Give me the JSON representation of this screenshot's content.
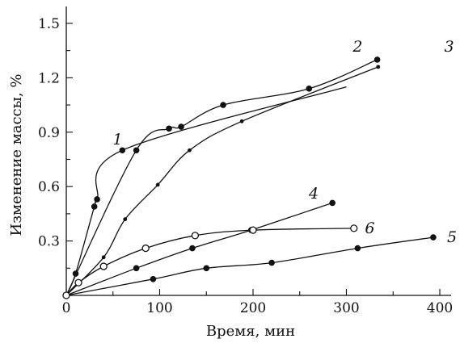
{
  "chart_data": {
    "type": "line",
    "xlabel": "Время, мин",
    "ylabel": "Изменение массы, %",
    "xlim": [
      0,
      420
    ],
    "ylim": [
      0,
      1.5
    ],
    "xticks": [
      0,
      100,
      200,
      300,
      400
    ],
    "xtick_labels": [
      "0",
      "100",
      "200",
      "300",
      "400"
    ],
    "yticks": [
      0.3,
      0.6,
      0.9,
      1.2,
      1.5
    ],
    "ytick_labels": [
      "0.3",
      "0.6",
      "0.9",
      "1.2",
      "1.5"
    ],
    "grid": false,
    "series": [
      {
        "name": "1",
        "marker": "filled-large",
        "points": [
          [
            0,
            0
          ],
          [
            10,
            0.12
          ],
          [
            30,
            0.49
          ],
          [
            33,
            0.53
          ],
          [
            60,
            0.8
          ],
          [
            300,
            1.15
          ]
        ],
        "label_at": [
          55,
          0.86
        ]
      },
      {
        "name": "2",
        "marker": "filled-large",
        "points": [
          [
            0,
            0
          ],
          [
            75,
            0.8
          ],
          [
            110,
            0.92
          ],
          [
            123,
            0.93
          ],
          [
            168,
            1.05
          ],
          [
            260,
            1.14
          ],
          [
            333,
            1.3
          ]
        ],
        "label_at": [
          312,
          1.37
        ]
      },
      {
        "name": "3",
        "marker": "filled-small",
        "points": [
          [
            0,
            0
          ],
          [
            40,
            0.21
          ],
          [
            63,
            0.42
          ],
          [
            98,
            0.61
          ],
          [
            132,
            0.8
          ],
          [
            188,
            0.96
          ],
          [
            334,
            1.26
          ]
        ],
        "label_at": [
          410,
          1.37
        ]
      },
      {
        "name": "4",
        "marker": "filled-large",
        "points": [
          [
            0,
            0
          ],
          [
            75,
            0.15
          ],
          [
            135,
            0.26
          ],
          [
            198,
            0.36
          ],
          [
            285,
            0.51
          ]
        ],
        "label_at": [
          265,
          0.56
        ]
      },
      {
        "name": "5",
        "marker": "filled-large",
        "points": [
          [
            0,
            0
          ],
          [
            93,
            0.09
          ],
          [
            150,
            0.15
          ],
          [
            220,
            0.18
          ],
          [
            312,
            0.26
          ],
          [
            393,
            0.32
          ]
        ],
        "label_at": [
          413,
          0.32
        ]
      },
      {
        "name": "6",
        "marker": "open",
        "points": [
          [
            0,
            0
          ],
          [
            13,
            0.07
          ],
          [
            40,
            0.16
          ],
          [
            85,
            0.26
          ],
          [
            138,
            0.33
          ],
          [
            200,
            0.36
          ],
          [
            308,
            0.37
          ]
        ],
        "label_at": [
          325,
          0.37
        ]
      }
    ]
  }
}
